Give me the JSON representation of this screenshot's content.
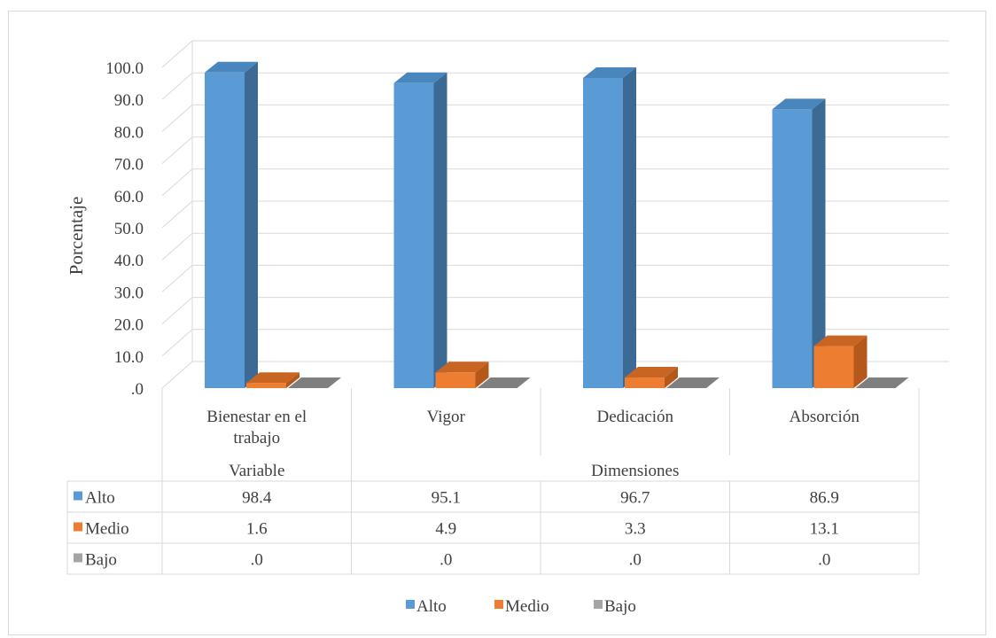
{
  "chart_data": {
    "type": "bar",
    "ylabel": "Porcentaje",
    "ylim": [
      0,
      100
    ],
    "y_ticks": [
      ".0",
      "10.0",
      "20.0",
      "30.0",
      "40.0",
      "50.0",
      "60.0",
      "70.0",
      "80.0",
      "90.0",
      "100.0"
    ],
    "grid": true,
    "legend_position": "bottom",
    "categories": [
      "Bienestar en el trabajo",
      "Vigor",
      "Dedicación",
      "Absorción"
    ],
    "category_lines": [
      [
        "Bienestar en el",
        "trabajo"
      ],
      [
        "Vigor"
      ],
      [
        "Dedicación"
      ],
      [
        "Absorción"
      ]
    ],
    "category_groups": [
      {
        "label": "Variable",
        "span": 1
      },
      {
        "label": "Dimensiones",
        "span": 3
      }
    ],
    "series": [
      {
        "name": "Alto",
        "color": "#5b9bd5",
        "side_color": "#3c6a94",
        "top_color": "#4a86be",
        "values": [
          98.4,
          95.1,
          96.7,
          86.9
        ],
        "labels": [
          "98.4",
          "95.1",
          "96.7",
          "86.9"
        ]
      },
      {
        "name": "Medio",
        "color": "#ed7d31",
        "side_color": "#b5581c",
        "top_color": "#c86523",
        "values": [
          1.6,
          4.9,
          3.3,
          13.1
        ],
        "labels": [
          "1.6",
          "4.9",
          "3.3",
          "13.1"
        ]
      },
      {
        "name": "Bajo",
        "color": "#a5a5a5",
        "side_color": "#6f6f6f",
        "top_color": "#7f7f7f",
        "values": [
          0,
          0,
          0,
          0
        ],
        "labels": [
          ".0",
          ".0",
          ".0",
          ".0"
        ]
      }
    ]
  }
}
